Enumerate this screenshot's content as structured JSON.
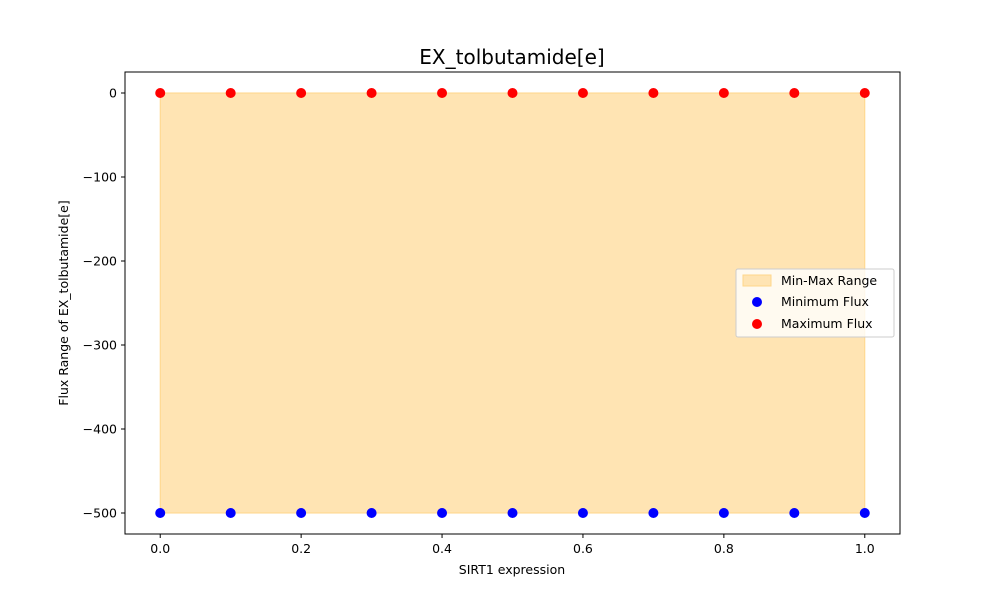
{
  "chart_data": {
    "type": "scatter",
    "title": "EX_tolbutamide[e]",
    "xlabel": "SIRT1 expression",
    "ylabel": "Flux Range of EX_tolbutamide[e]",
    "xlim": [
      -0.05,
      1.05
    ],
    "ylim": [
      -525,
      25
    ],
    "xticks": [
      0.0,
      0.2,
      0.4,
      0.6,
      0.8,
      1.0
    ],
    "xtick_labels": [
      "0.0",
      "0.2",
      "0.4",
      "0.6",
      "0.8",
      "1.0"
    ],
    "yticks": [
      0,
      -100,
      -200,
      -300,
      -400,
      -500
    ],
    "ytick_labels": [
      "0",
      "−100",
      "−200",
      "−300",
      "−400",
      "−500"
    ],
    "grid": false,
    "legend_position": "center-right",
    "x": [
      0.0,
      0.1,
      0.2,
      0.3,
      0.4,
      0.5,
      0.6,
      0.7,
      0.8,
      0.9,
      1.0
    ],
    "fill": {
      "name": "Min-Max Range",
      "color": "#ffe4b3",
      "edge_color": "#ffd68a",
      "lower": [
        -500,
        -500,
        -500,
        -500,
        -500,
        -500,
        -500,
        -500,
        -500,
        -500,
        -500
      ],
      "upper": [
        0,
        0,
        0,
        0,
        0,
        0,
        0,
        0,
        0,
        0,
        0
      ]
    },
    "series": [
      {
        "name": "Minimum Flux",
        "color": "#0000ff",
        "values": [
          -500,
          -500,
          -500,
          -500,
          -500,
          -500,
          -500,
          -500,
          -500,
          -500,
          -500
        ]
      },
      {
        "name": "Maximum Flux",
        "color": "#ff0000",
        "values": [
          0,
          0,
          0,
          0,
          0,
          0,
          0,
          0,
          0,
          0,
          0
        ]
      }
    ]
  }
}
